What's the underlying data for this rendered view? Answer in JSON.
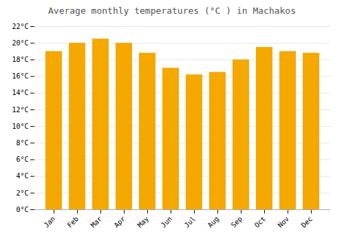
{
  "chart_data": {
    "type": "bar",
    "title": "Average monthly temperatures (°C ) in Machakos",
    "categories": [
      "Jan",
      "Feb",
      "Mar",
      "Apr",
      "May",
      "Jun",
      "Jul",
      "Aug",
      "Sep",
      "Oct",
      "Nov",
      "Dec"
    ],
    "values": [
      19.0,
      20.0,
      20.5,
      20.0,
      18.8,
      17.0,
      16.2,
      16.5,
      18.0,
      19.5,
      19.0,
      18.8
    ],
    "color": "#F5A800",
    "ylim": [
      0,
      22
    ],
    "yticks": [
      {
        "value": 0,
        "label": "0°C"
      },
      {
        "value": 2,
        "label": "2°C"
      },
      {
        "value": 4,
        "label": "4°C"
      },
      {
        "value": 6,
        "label": "6°C"
      },
      {
        "value": 8,
        "label": "8°C"
      },
      {
        "value": 10,
        "label": "10°C"
      },
      {
        "value": 12,
        "label": "12°C"
      },
      {
        "value": 14,
        "label": "14°C"
      },
      {
        "value": 16,
        "label": "16°C"
      },
      {
        "value": 18,
        "label": "18°C"
      },
      {
        "value": 20,
        "label": "20°C"
      },
      {
        "value": 22,
        "label": "22°C"
      }
    ],
    "grid": true
  }
}
